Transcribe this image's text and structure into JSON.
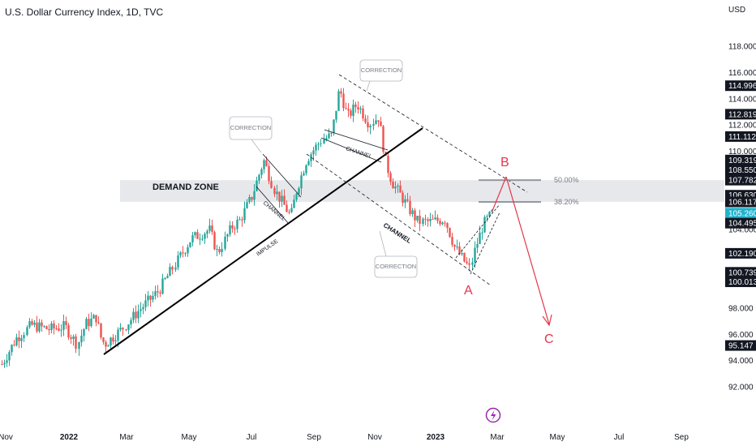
{
  "header": {
    "title": "U.S. Dollar Currency Index, 1D, TVC"
  },
  "colors": {
    "up": "#26a69a",
    "down": "#ef5350",
    "wave": "#e5364a",
    "zone": "#e3e4e7",
    "last_price": "#22b3cc",
    "badge": "#131722",
    "fib": "#9598a1",
    "trendline": "#000000"
  },
  "chart_data": {
    "type": "candlestick",
    "symbol": "U.S. Dollar Currency Index",
    "interval": "1D",
    "source": "TVC",
    "currency": "USD",
    "ylim": [
      91.0,
      119.5
    ],
    "y_ticks": [
      "92.000",
      "94.000",
      "96.000",
      "98.000",
      "104.000",
      "110.000",
      "112.000",
      "114.000",
      "116.000",
      "118.000"
    ],
    "x_labels": [
      {
        "label": "Nov",
        "bold": false
      },
      {
        "label": "2022",
        "bold": true
      },
      {
        "label": "Mar",
        "bold": false
      },
      {
        "label": "May",
        "bold": false
      },
      {
        "label": "Jul",
        "bold": false
      },
      {
        "label": "Sep",
        "bold": false
      },
      {
        "label": "Nov",
        "bold": false
      },
      {
        "label": "2023",
        "bold": true
      },
      {
        "label": "Mar",
        "bold": false
      },
      {
        "label": "May",
        "bold": false
      },
      {
        "label": "Jul",
        "bold": false
      },
      {
        "label": "Sep",
        "bold": false
      }
    ],
    "price_badges": [
      {
        "value": "114.996",
        "style": "dark"
      },
      {
        "value": "112.819",
        "style": "dark"
      },
      {
        "value": "111.112",
        "style": "dark"
      },
      {
        "value": "109.319",
        "style": "dark"
      },
      {
        "value": "108.550",
        "style": "dark"
      },
      {
        "value": "107.782",
        "style": "dark"
      },
      {
        "value": "106.630",
        "style": "dark"
      },
      {
        "value": "106.117",
        "style": "dark"
      },
      {
        "value": "105.260",
        "style": "last"
      },
      {
        "value": "104.495",
        "style": "dark"
      },
      {
        "value": "102.190",
        "style": "dark"
      },
      {
        "value": "100.739",
        "style": "dark"
      },
      {
        "value": "100.013",
        "style": "dark"
      },
      {
        "value": "95.147",
        "style": "dark"
      }
    ],
    "path": [
      [
        0,
        93.5
      ],
      [
        20,
        95.7
      ],
      [
        38,
        96.7
      ],
      [
        60,
        96.4
      ],
      [
        80,
        96.6
      ],
      [
        95,
        95.2
      ],
      [
        105,
        96.8
      ],
      [
        118,
        97.3
      ],
      [
        125,
        95.5
      ],
      [
        130,
        95.3
      ],
      [
        150,
        96.4
      ],
      [
        170,
        97.8
      ],
      [
        195,
        99.3
      ],
      [
        215,
        101.3
      ],
      [
        235,
        103.3
      ],
      [
        258,
        104.0
      ],
      [
        268,
        102.2
      ],
      [
        285,
        104.2
      ],
      [
        295,
        104.7
      ],
      [
        310,
        106.5
      ],
      [
        325,
        109.3
      ],
      [
        338,
        107.0
      ],
      [
        350,
        105.8
      ],
      [
        358,
        105.0
      ],
      [
        365,
        107.0
      ],
      [
        378,
        109.4
      ],
      [
        395,
        110.8
      ],
      [
        408,
        111.2
      ],
      [
        418,
        114.8
      ],
      [
        428,
        112.6
      ],
      [
        440,
        113.6
      ],
      [
        455,
        112.1
      ],
      [
        466,
        112.6
      ],
      [
        475,
        109.1
      ],
      [
        483,
        107.6
      ],
      [
        495,
        106.5
      ],
      [
        505,
        105.5
      ],
      [
        515,
        104.6
      ],
      [
        530,
        104.6
      ],
      [
        548,
        104.8
      ],
      [
        560,
        102.7
      ],
      [
        572,
        101.6
      ],
      [
        579,
        101.0
      ],
      [
        585,
        102.5
      ],
      [
        595,
        104.4
      ],
      [
        607,
        105.3
      ]
    ],
    "demand_zone": {
      "label": "DEMAND ZONE",
      "low": 106.12,
      "high": 107.78
    },
    "fib_levels": [
      {
        "label": "50.00%",
        "value": 107.782
      },
      {
        "label": "38.20%",
        "value": 106.117
      }
    ],
    "wave_labels": [
      "A",
      "B",
      "C"
    ],
    "annotations": {
      "correction_1": "CORRECTION",
      "correction_2": "CORRECTION",
      "correction_3": "CORRECTION",
      "channel_1": "CHANNEL",
      "channel_2": "CHANNEL",
      "channel_3": "CHANNEL",
      "impulse": "IMPULSE"
    },
    "xlabel": "",
    "ylabel": "USD"
  }
}
